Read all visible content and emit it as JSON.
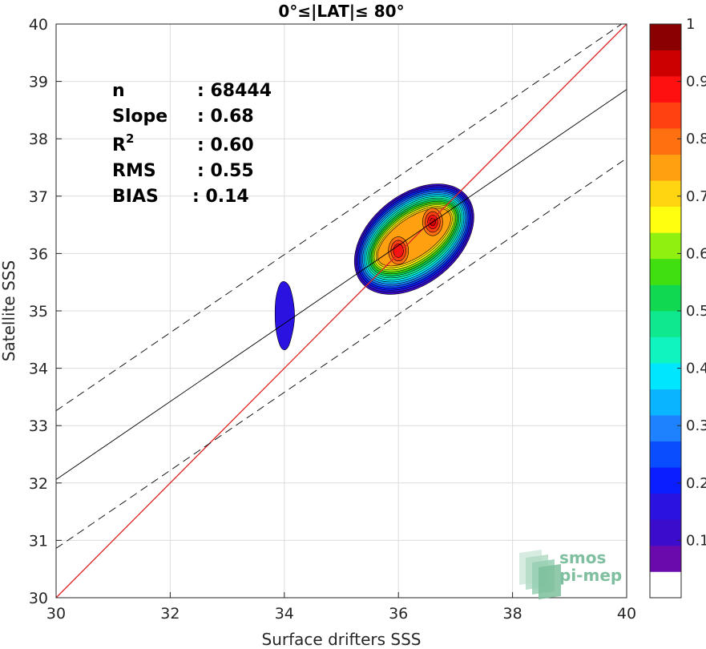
{
  "chart_data": {
    "type": "contour-scatter",
    "title": "0°≤|LAT|≤ 80°",
    "xlabel": "Surface drifters SSS",
    "ylabel": "Satellite SSS",
    "xlim": [
      30,
      40
    ],
    "ylim": [
      30,
      40
    ],
    "xticks": [
      "30",
      "32",
      "34",
      "36",
      "38",
      "40"
    ],
    "yticks": [
      "30",
      "31",
      "32",
      "33",
      "34",
      "35",
      "36",
      "37",
      "38",
      "39",
      "40"
    ],
    "grid": true,
    "stats": [
      {
        "label": "n",
        "value": ": 68444"
      },
      {
        "label": "Slope",
        "value": ": 0.68"
      },
      {
        "label": "R",
        "sup": "2",
        "value": ": 0.60"
      },
      {
        "label": "RMS",
        "value": ": 0.55"
      },
      {
        "label": "BIAS",
        "value": ": 0.14"
      }
    ],
    "lines": [
      {
        "kind": "identity",
        "color": "#dd2222",
        "style": "solid",
        "slope": 1,
        "intercept": 0
      },
      {
        "kind": "regression",
        "color": "#000000",
        "style": "solid",
        "slope": 0.68,
        "intercept": 11.66
      },
      {
        "kind": "regression-upper",
        "color": "#000000",
        "style": "dashed",
        "slope": 0.68,
        "intercept": 12.86
      },
      {
        "kind": "regression-lower",
        "color": "#000000",
        "style": "dashed",
        "slope": 0.68,
        "intercept": 10.46
      }
    ],
    "density_levels": [
      0.05,
      0.1,
      0.15,
      0.2,
      0.25,
      0.3,
      0.35,
      0.4,
      0.45,
      0.5,
      0.55,
      0.6,
      0.65,
      0.7,
      0.75,
      0.8,
      0.85,
      0.9,
      0.95
    ],
    "density_peaks": [
      {
        "x": 36.6,
        "y": 36.55,
        "value": 0.95
      },
      {
        "x": 36.0,
        "y": 36.05,
        "value": 0.9
      }
    ],
    "secondary_cluster": {
      "x": 34.0,
      "y": 34.9,
      "value": 0.1
    },
    "colorbar": {
      "min": 0,
      "max": 1,
      "ticks": [
        "0.1",
        "0.2",
        "0.3",
        "0.4",
        "0.5",
        "0.6",
        "0.7",
        "0.8",
        "0.9",
        "1"
      ],
      "colors": [
        "#ffffff",
        "#6a0aad",
        "#3c0ccc",
        "#2a12e0",
        "#0a1eff",
        "#0a4dff",
        "#1e82ff",
        "#0ab4ff",
        "#00e6ff",
        "#10f5c0",
        "#10e890",
        "#10d850",
        "#40e010",
        "#90f010",
        "#ffff10",
        "#ffd410",
        "#ffa010",
        "#ff7010",
        "#ff4010",
        "#ff1010",
        "#cc0000",
        "#8a0000"
      ]
    },
    "logo": [
      "smos",
      "pi-mep"
    ]
  }
}
